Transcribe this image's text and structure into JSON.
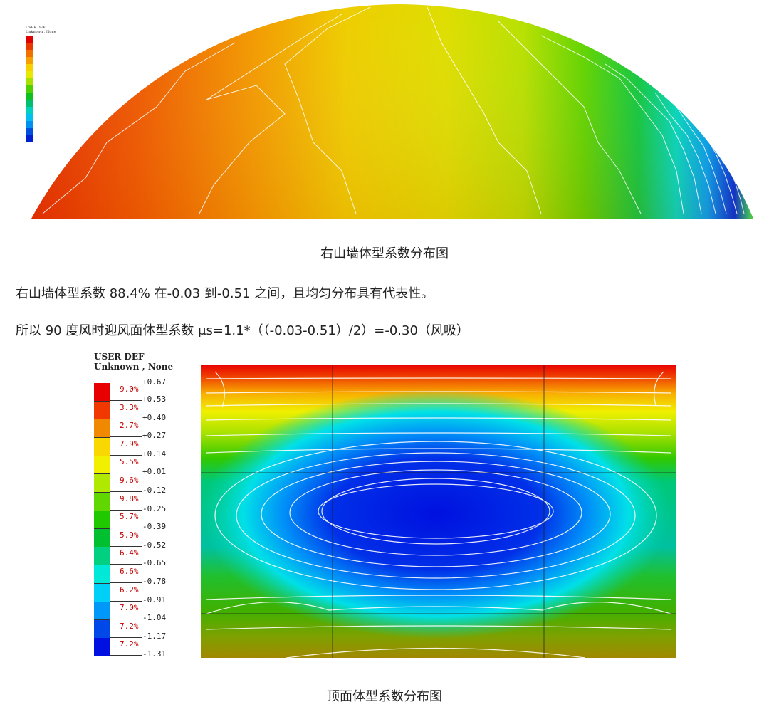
{
  "figure1": {
    "caption": "右山墙体型系数分布图",
    "legend": {
      "title_line1": "USER DEF",
      "title_line2": "Unknown , None",
      "entries": [
        {
          "color": "#e00000"
        },
        {
          "color": "#e83a00"
        },
        {
          "color": "#f07000"
        },
        {
          "color": "#f5a000"
        },
        {
          "color": "#f8d000"
        },
        {
          "color": "#e8e800"
        },
        {
          "color": "#a8e000"
        },
        {
          "color": "#50d000"
        },
        {
          "color": "#10c020"
        },
        {
          "color": "#00c070"
        },
        {
          "color": "#00d0c0"
        },
        {
          "color": "#00c0f0"
        },
        {
          "color": "#0090f0"
        },
        {
          "color": "#0050e0"
        },
        {
          "color": "#0020d0"
        }
      ]
    }
  },
  "text": {
    "line1": "右山墙体型系数 88.4% 在-0.03 到-0.51 之间，且均匀分布具有代表性。",
    "line2": "所以 90 度风时迎风面体型系数 μs=1.1*（（-0.03-0.51）/2）=-0.30（风吸）"
  },
  "figure2": {
    "caption": "顶面体型系数分布图",
    "legend": {
      "title_line1": "USER DEF",
      "title_line2": "Unknown , None",
      "top_value": "+0.67",
      "entries": [
        {
          "color": "#e80000",
          "pct": "9.0%",
          "value": "+0.53"
        },
        {
          "color": "#f03800",
          "pct": "3.3%",
          "value": "+0.40"
        },
        {
          "color": "#f08800",
          "pct": "2.7%",
          "value": "+0.27"
        },
        {
          "color": "#f8d800",
          "pct": "7.9%",
          "value": "+0.14"
        },
        {
          "color": "#f0f000",
          "pct": "5.5%",
          "value": "+0.01"
        },
        {
          "color": "#b0e800",
          "pct": "9.6%",
          "value": "-0.12"
        },
        {
          "color": "#60d800",
          "pct": "9.8%",
          "value": "-0.25"
        },
        {
          "color": "#20c800",
          "pct": "5.7%",
          "value": "-0.39"
        },
        {
          "color": "#00c030",
          "pct": "5.9%",
          "value": "-0.52"
        },
        {
          "color": "#00d080",
          "pct": "6.4%",
          "value": "-0.65"
        },
        {
          "color": "#00e8d8",
          "pct": "6.6%",
          "value": "-0.78"
        },
        {
          "color": "#00d0f8",
          "pct": "6.2%",
          "value": "-0.91"
        },
        {
          "color": "#0098f8",
          "pct": "7.0%",
          "value": "-1.04"
        },
        {
          "color": "#0048e8",
          "pct": "7.2%",
          "value": "-1.17"
        },
        {
          "color": "#0010e0",
          "pct": "7.2%",
          "value": "-1.31"
        }
      ]
    }
  }
}
